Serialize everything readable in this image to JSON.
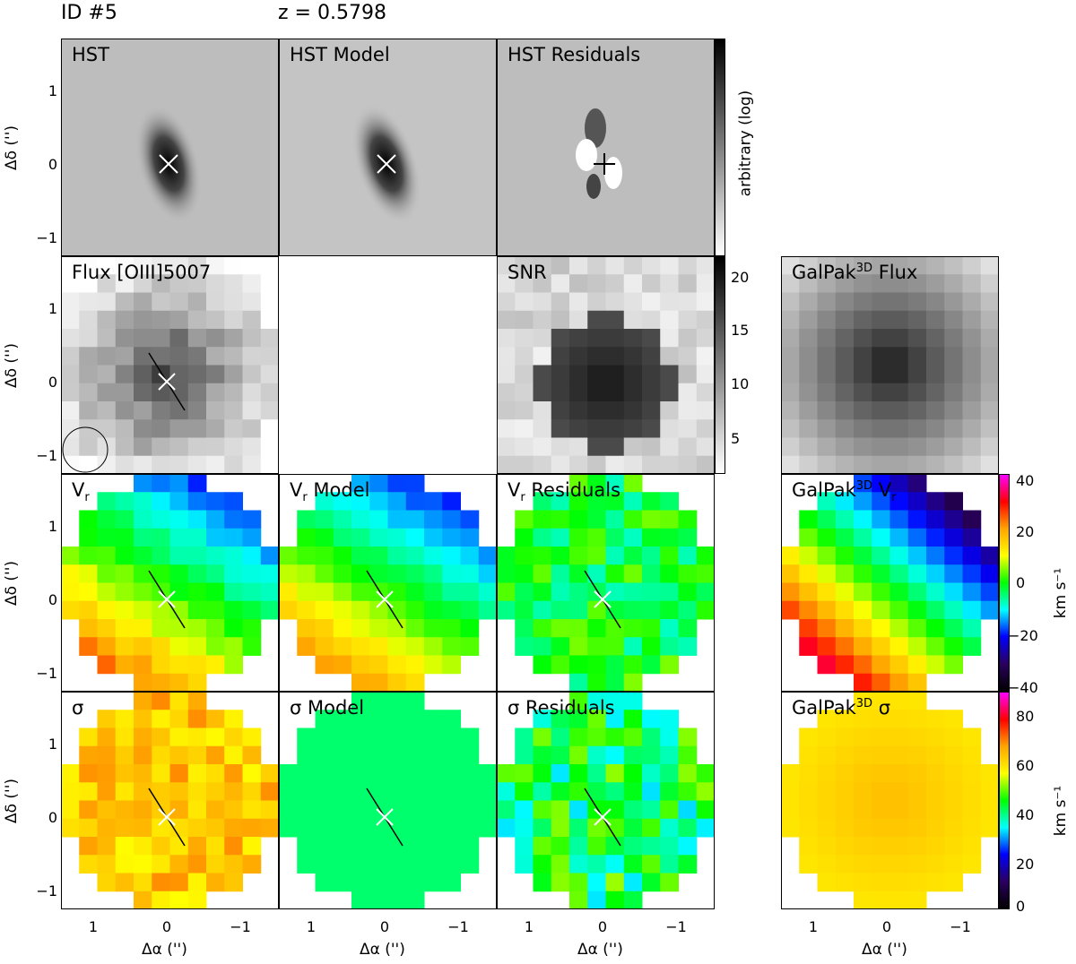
{
  "header": {
    "id_label": "ID #5",
    "z_label": "z = 0.5798"
  },
  "panels": {
    "hst": "HST",
    "hst_model": "HST Model",
    "hst_residuals": "HST Residuals",
    "flux": "Flux [OIII]5007",
    "snr": "SNR",
    "galpak_flux_pre": "GalPak",
    "galpak_flux_sup": "3D",
    "galpak_flux_post": " Flux",
    "vr_main": "V",
    "vr_sub": "r",
    "vr_model_post": " Model",
    "vr_resid_post": " Residuals",
    "galpak_vr_pre": "GalPak",
    "galpak_vr_sup": "3D",
    "galpak_vr_post": " V",
    "sigma": "σ",
    "sigma_model": "σ Model",
    "sigma_residuals": "σ Residuals",
    "galpak_sigma_pre": "GalPak",
    "galpak_sigma_sup": "3D",
    "galpak_sigma_post": " σ"
  },
  "axes": {
    "y_label": "Δδ ('')",
    "x_label": "Δα ('')",
    "y_ticks": [
      "1",
      "0",
      "−1"
    ],
    "x_ticks": [
      "1",
      "0",
      "−1"
    ]
  },
  "colorbars": {
    "hst_label": "arbitrary (log)",
    "snr_ticks": [
      "20",
      "15",
      "10",
      "5"
    ],
    "vr_ticks": [
      "40",
      "20",
      "0",
      "−20",
      "−40"
    ],
    "vr_label": "km s⁻¹",
    "sigma_ticks": [
      "80",
      "60",
      "40",
      "20",
      "0"
    ],
    "sigma_label": "km s⁻¹"
  },
  "chart_data": {
    "type": "heatmap",
    "object_id": "ID #5",
    "redshift": 0.5798,
    "xlim": [
      1.4,
      -1.4
    ],
    "ylim": [
      -1.4,
      1.4
    ],
    "snr_range": [
      1,
      22
    ],
    "vr_range_kms": [
      -45,
      45
    ],
    "sigma_range_kms": [
      0,
      90
    ],
    "galpak_sigma_kms": 65
  }
}
